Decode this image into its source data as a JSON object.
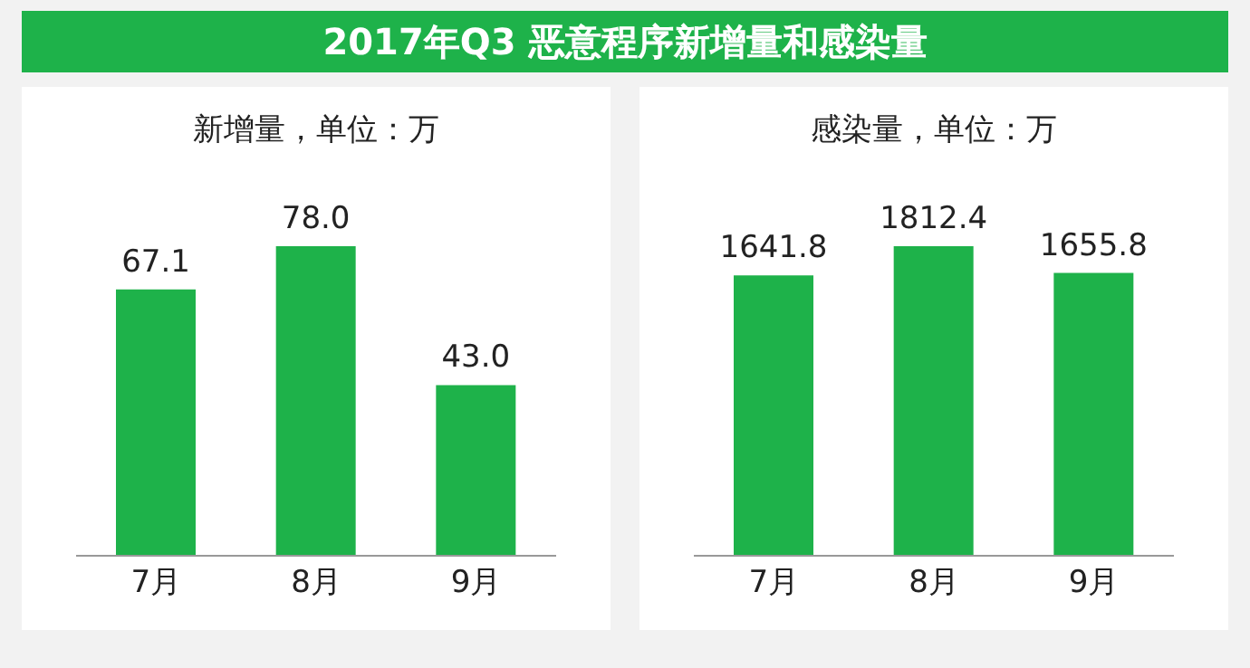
{
  "chart_data": [
    {
      "type": "bar",
      "title": "2017年Q3 恶意程序新增量和感染量",
      "subtitle": "新增量，单位：万",
      "categories": [
        "7月",
        "8月",
        "9月"
      ],
      "values": [
        67.1,
        78.0,
        43.0
      ],
      "value_labels": [
        "67.1",
        "78.0",
        "43.0"
      ],
      "color": "#1eb24a",
      "tick_labels": "x"
    },
    {
      "type": "bar",
      "subtitle": "感染量，单位：万",
      "categories": [
        "7月",
        "8月",
        "9月"
      ],
      "values": [
        1641.8,
        1812.4,
        1655.8
      ],
      "value_labels": [
        "1641.8",
        "1812.4",
        "1655.8"
      ],
      "color": "#1eb24a",
      "tick_labels": "x"
    }
  ]
}
